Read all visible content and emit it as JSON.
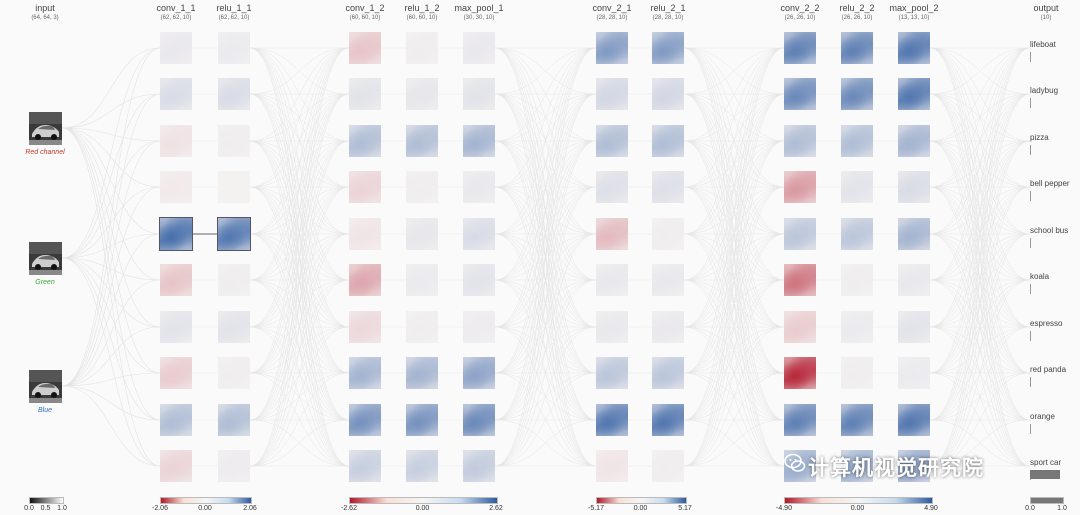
{
  "input": {
    "title": "input",
    "dims": "(64, 64, 3)",
    "channels": [
      {
        "label": "Red channel",
        "color": "#c0392b"
      },
      {
        "label": "Green",
        "color": "#3aa63a"
      },
      {
        "label": "Blue",
        "color": "#2f6db5"
      }
    ]
  },
  "layers": [
    {
      "id": "conv_1_1",
      "title": "conv_1_1",
      "dims": "(62, 62, 10)",
      "tiles": [
        0.05,
        0.12,
        -0.06,
        -0.03,
        0.75,
        -0.18,
        0.08,
        -0.15,
        0.3,
        -0.12
      ]
    },
    {
      "id": "relu_1_1",
      "title": "relu_1_1",
      "dims": "(62, 62, 10)",
      "tiles": [
        0.04,
        0.12,
        0.02,
        0.0,
        0.7,
        0.02,
        0.08,
        0.02,
        0.3,
        0.03
      ]
    },
    {
      "id": "conv_1_2",
      "title": "conv_1_2",
      "dims": "(60, 60, 10)",
      "tiles": [
        -0.18,
        0.08,
        0.3,
        -0.12,
        -0.05,
        -0.3,
        -0.1,
        0.35,
        0.55,
        0.2
      ]
    },
    {
      "id": "relu_1_2",
      "title": "relu_1_2",
      "dims": "(60, 60, 10)",
      "tiles": [
        0.02,
        0.06,
        0.3,
        0.02,
        0.06,
        0.04,
        0.02,
        0.35,
        0.55,
        0.2
      ]
    },
    {
      "id": "max_pool_1",
      "title": "max_pool_1",
      "dims": "(30, 30, 10)",
      "tiles": [
        0.05,
        0.08,
        0.35,
        0.05,
        0.12,
        0.08,
        0.03,
        0.45,
        0.6,
        0.22
      ]
    },
    {
      "id": "conv_2_1",
      "title": "conv_2_1",
      "dims": "(28, 28, 10)",
      "tiles": [
        0.5,
        0.15,
        0.3,
        0.1,
        -0.22,
        0.05,
        0.05,
        0.25,
        0.7,
        -0.05
      ]
    },
    {
      "id": "relu_2_1",
      "title": "relu_2_1",
      "dims": "(28, 28, 10)",
      "tiles": [
        0.5,
        0.15,
        0.3,
        0.1,
        0.02,
        0.05,
        0.05,
        0.25,
        0.7,
        0.02
      ]
    },
    {
      "id": "conv_2_2",
      "title": "conv_2_2",
      "dims": "(26, 26, 10)",
      "tiles": [
        0.65,
        0.6,
        0.3,
        -0.35,
        0.25,
        -0.5,
        -0.15,
        -0.8,
        0.65,
        0.4
      ]
    },
    {
      "id": "relu_2_2",
      "title": "relu_2_2",
      "dims": "(26, 26, 10)",
      "tiles": [
        0.65,
        0.6,
        0.3,
        0.08,
        0.25,
        0.02,
        0.04,
        0.02,
        0.65,
        0.4
      ]
    },
    {
      "id": "max_pool_2",
      "title": "max_pool_2",
      "dims": "(13, 13, 10)",
      "tiles": [
        0.7,
        0.7,
        0.35,
        0.12,
        0.35,
        0.05,
        0.08,
        0.04,
        0.7,
        0.45
      ]
    }
  ],
  "output": {
    "title": "output",
    "dims": "(10)",
    "classes": [
      {
        "label": "lifeboat",
        "p": 0.01
      },
      {
        "label": "ladybug",
        "p": 0.01
      },
      {
        "label": "pizza",
        "p": 0.0
      },
      {
        "label": "bell pepper",
        "p": 0.0
      },
      {
        "label": "school bus",
        "p": 0.0
      },
      {
        "label": "koala",
        "p": 0.01
      },
      {
        "label": "espresso",
        "p": 0.01
      },
      {
        "label": "red panda",
        "p": 0.01
      },
      {
        "label": "orange",
        "p": 0.01
      },
      {
        "label": "sport car",
        "p": 0.95
      }
    ]
  },
  "scales": [
    {
      "min": "0.0",
      "mid": "0.5",
      "max": "1.0",
      "type": "gray"
    },
    {
      "min": "-2.06",
      "mid": "0.00",
      "max": "2.06",
      "type": "div"
    },
    {
      "min": "-2.62",
      "mid": "0.00",
      "max": "2.62",
      "type": "div"
    },
    {
      "min": "-5.17",
      "mid": "0.00",
      "max": "5.17",
      "type": "div"
    },
    {
      "min": "-4.90",
      "mid": "0.00",
      "max": "4.90",
      "type": "div"
    },
    {
      "min": "0.0",
      "mid": "",
      "max": "1.0",
      "type": "gray"
    }
  ],
  "watermark": "计算机视觉研究院",
  "colors": {
    "pos": "#2c5aa0",
    "neg": "#b2182b",
    "neutral": "#f4f1f1",
    "gray": "#777777"
  }
}
